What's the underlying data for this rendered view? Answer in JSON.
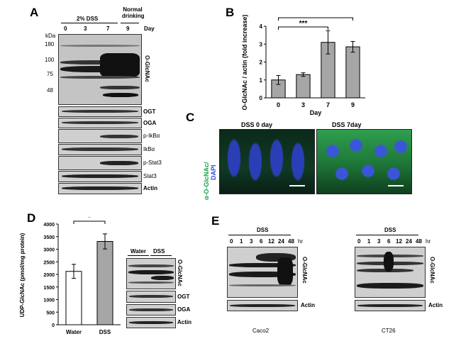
{
  "panels": {
    "a": "A",
    "b": "B",
    "c": "C",
    "d": "D",
    "e": "E"
  },
  "panel_a": {
    "group_dss": "2% DSS",
    "group_normal": "Normal drinking",
    "day_label": "Day",
    "days": [
      "0",
      "3",
      "7",
      "9"
    ],
    "kda": "kDa",
    "markers": [
      "180",
      "100",
      "75",
      "48"
    ],
    "blots": [
      "O-GlcNAc",
      "OGT",
      "OGA",
      "p-IkBα",
      "IkBα",
      "p-Stat3",
      "Stat3",
      "Actin"
    ]
  },
  "panel_c": {
    "titles": [
      "DSS 0 day",
      "DSS 7day"
    ],
    "stain_label": "α-O-GlcNAc/",
    "dapi_label": "DAPI",
    "colors": {
      "green": "#22c55e",
      "blue": "#3b5bdb"
    }
  },
  "panel_d": {
    "groups": [
      "Water",
      "DSS"
    ],
    "blots": [
      "O-GlcNAc",
      "OGT",
      "OGA",
      "Actin"
    ]
  },
  "panel_e": {
    "group": "DSS",
    "times": [
      "0",
      "1",
      "3",
      "6",
      "12",
      "24",
      "48"
    ],
    "hr": "hr",
    "blots": [
      "O-GlcNAc",
      "Actin"
    ],
    "cell_lines": [
      "Caco2",
      "CT26"
    ]
  },
  "chart_data": [
    {
      "type": "bar",
      "categories": [
        "0",
        "3",
        "7",
        "9"
      ],
      "values": [
        1.0,
        1.3,
        3.1,
        2.85
      ],
      "errors": [
        0.25,
        0.1,
        0.65,
        0.3
      ],
      "xlabel": "Day",
      "ylabel": "O-GlcNAc / actin (fold increase)",
      "ylim": [
        0,
        4
      ],
      "yticks": [
        "0",
        "1",
        "2",
        "3",
        "4"
      ],
      "bar_color": "#a6a6a6",
      "significance": [
        {
          "label": "***",
          "from": "0",
          "to": "9"
        },
        {
          "label": "***",
          "from": "0",
          "to": "7"
        }
      ]
    },
    {
      "type": "bar",
      "categories": [
        "Water",
        "DSS"
      ],
      "values": [
        2120,
        3310
      ],
      "errors": [
        280,
        300
      ],
      "xlabel": "",
      "ylabel": "UDP-GlcNAc (pmol/mg protein)",
      "ylim": [
        0,
        4000
      ],
      "yticks": [
        "0",
        "500",
        "1000",
        "1500",
        "2000",
        "2500",
        "3000",
        "3500",
        "4000"
      ],
      "bar_colors": [
        "#ffffff",
        "#a6a6a6"
      ],
      "significance": [
        {
          "label": "*",
          "from": "Water",
          "to": "DSS"
        }
      ]
    }
  ]
}
